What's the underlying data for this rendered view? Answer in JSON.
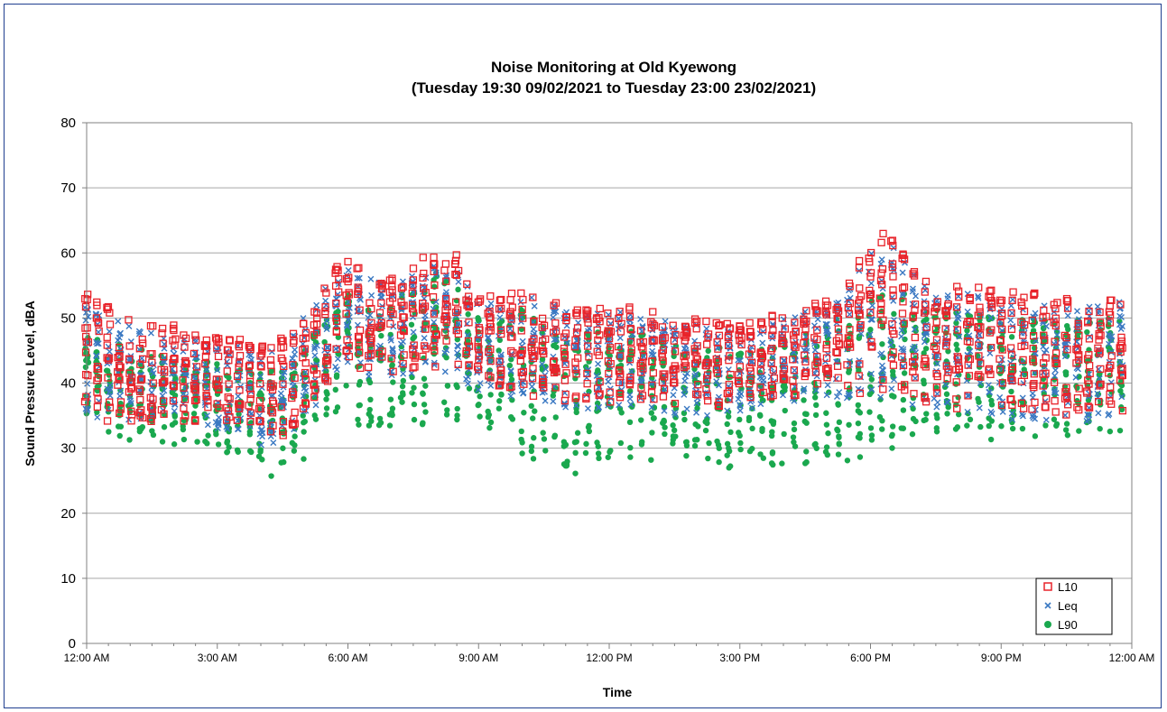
{
  "chart_data": {
    "type": "scatter",
    "title_line1": "Noise Monitoring at Old Kyewong",
    "title_line2": "(Tuesday 19:30 09/02/2021 to Tuesday 23:00 23/02/2021)",
    "xlabel": "Time",
    "ylabel": "Sound Pressure Level, dBA",
    "ylim": [
      0,
      80
    ],
    "xlim_hours": [
      0,
      24
    ],
    "y_ticks": [
      0,
      10,
      20,
      30,
      40,
      50,
      60,
      70,
      80
    ],
    "x_tick_labels": [
      "12:00 AM",
      "3:00 AM",
      "6:00 AM",
      "9:00 AM",
      "12:00 PM",
      "3:00 PM",
      "6:00 PM",
      "9:00 PM",
      "12:00 AM"
    ],
    "grid": "horizontal",
    "legend_position": "bottom-right",
    "colors": {
      "L10": "#e8232a",
      "Leq": "#3a78c2",
      "L90": "#1aa84e",
      "grid": "#a6a6a6",
      "frame": "#1f3f8f"
    },
    "series_profile_note_hours": [
      0,
      0.5,
      1,
      1.5,
      2,
      2.5,
      3,
      3.5,
      4,
      4.5,
      5,
      5.5,
      6,
      6.5,
      7,
      7.5,
      8,
      8.5,
      9,
      9.5,
      10,
      10.5,
      11,
      11.5,
      12,
      12.5,
      13,
      13.5,
      14,
      14.5,
      15,
      15.5,
      16,
      16.5,
      17,
      17.5,
      18,
      18.5,
      19,
      19.5,
      20,
      20.5,
      21,
      21.5,
      22,
      22.5,
      23,
      23.5,
      24
    ],
    "series": [
      {
        "name": "L10",
        "marker": "open-square",
        "typical_upper_by_half_hour": [
          54,
          52,
          50,
          49,
          49,
          48,
          48,
          47,
          46,
          47,
          50,
          56,
          60,
          57,
          57,
          59,
          60,
          60,
          54,
          53,
          55,
          54,
          52,
          52,
          52,
          52,
          51,
          50,
          50,
          50,
          49,
          50,
          51,
          52,
          53,
          56,
          64,
          62,
          58,
          55,
          55,
          55,
          54,
          54,
          54,
          53,
          53,
          53,
          54
        ],
        "typical_lower_by_half_hour": [
          35,
          34,
          34,
          34,
          34,
          34,
          33,
          32,
          30,
          31,
          35,
          40,
          42,
          42,
          41,
          41,
          42,
          42,
          39,
          39,
          38,
          38,
          37,
          37,
          37,
          37,
          37,
          36,
          36,
          36,
          36,
          37,
          38,
          38,
          38,
          38,
          38,
          39,
          37,
          37,
          36,
          36,
          35,
          35,
          35,
          35,
          35,
          35,
          35
        ]
      },
      {
        "name": "Leq",
        "marker": "cross",
        "typical_upper_by_half_hour": [
          52,
          50,
          49,
          48,
          47,
          47,
          46,
          46,
          45,
          46,
          50,
          55,
          58,
          56,
          55,
          57,
          58,
          58,
          53,
          52,
          54,
          53,
          51,
          51,
          51,
          51,
          50,
          49,
          49,
          49,
          48,
          49,
          50,
          51,
          52,
          55,
          62,
          61,
          57,
          54,
          54,
          54,
          53,
          53,
          53,
          52,
          52,
          52,
          53
        ],
        "typical_lower_by_half_hour": [
          35,
          34,
          34,
          34,
          34,
          33,
          33,
          31,
          29,
          30,
          34,
          39,
          41,
          41,
          40,
          40,
          41,
          41,
          38,
          38,
          37,
          37,
          36,
          36,
          36,
          36,
          36,
          35,
          35,
          35,
          35,
          36,
          37,
          37,
          37,
          37,
          37,
          38,
          36,
          36,
          35,
          35,
          34,
          34,
          34,
          34,
          34,
          34,
          34
        ]
      },
      {
        "name": "L90",
        "marker": "filled-circle",
        "typical_upper_by_half_hour": [
          48,
          46,
          46,
          45,
          44,
          44,
          43,
          43,
          42,
          43,
          46,
          50,
          54,
          53,
          53,
          55,
          57,
          56,
          51,
          50,
          52,
          50,
          48,
          48,
          48,
          48,
          47,
          46,
          46,
          46,
          45,
          46,
          47,
          48,
          49,
          51,
          53,
          55,
          53,
          52,
          51,
          51,
          50,
          50,
          50,
          50,
          50,
          50,
          50
        ],
        "typical_lower_by_half_hour": [
          33,
          32,
          31,
          30,
          30,
          30,
          30,
          28,
          25,
          26,
          28,
          33,
          34,
          33,
          33,
          33,
          33,
          34,
          34,
          32,
          28,
          27,
          26,
          25,
          26,
          28,
          28,
          28,
          27,
          26,
          26,
          27,
          27,
          27,
          28,
          28,
          28,
          30,
          32,
          32,
          31,
          31,
          31,
          31,
          31,
          31,
          32,
          32,
          32
        ]
      }
    ]
  }
}
